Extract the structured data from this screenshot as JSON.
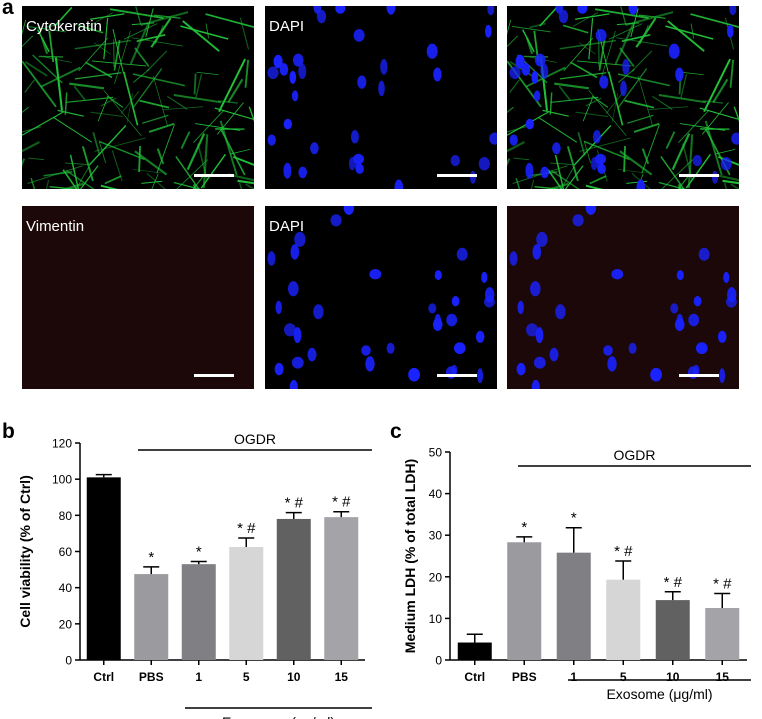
{
  "panels": {
    "a": "a",
    "b": "b",
    "c": "c"
  },
  "micrographs": [
    {
      "label": "Cytokeratin",
      "channel": "green"
    },
    {
      "label": "DAPI",
      "channel": "blue"
    },
    {
      "label": "",
      "channel": "merge-green-blue"
    },
    {
      "label": "Vimentin",
      "channel": "dark-red"
    },
    {
      "label": "DAPI",
      "channel": "blue"
    },
    {
      "label": "",
      "channel": "merge-red-blue"
    }
  ],
  "colors": {
    "green_stain": "#22c43a",
    "blue_nuclei": "#1a22ff",
    "dark_red_bg": "#1c0808",
    "bar_ctrl": "#000000",
    "bar_pbs": "#9a9a9f",
    "bar_1": "#7f7f84",
    "bar_5": "#d6d6d6",
    "bar_10": "#616161",
    "bar_15": "#a3a3a8"
  },
  "chart_data": [
    {
      "type": "bar",
      "categories": [
        "Ctrl",
        "PBS",
        "1",
        "5",
        "10",
        "15"
      ],
      "values": [
        101,
        47.5,
        53,
        62.5,
        78,
        79
      ],
      "errors": [
        1.5,
        4,
        1.5,
        5,
        3.5,
        3
      ],
      "annotations": [
        "",
        "*",
        "*",
        "*#",
        "*#",
        "*#"
      ],
      "ylabel": "Cell viability (% of Ctrl)",
      "xlabel": "Exosomes (μg/ml)",
      "ylim": [
        0,
        120
      ],
      "yticks": [
        0,
        20,
        40,
        60,
        80,
        100,
        120
      ],
      "group_label": "OGDR"
    },
    {
      "type": "bar",
      "categories": [
        "Ctrl",
        "PBS",
        "1",
        "5",
        "10",
        "15"
      ],
      "values": [
        4.2,
        28.3,
        25.8,
        19.3,
        14.4,
        12.5
      ],
      "errors": [
        2,
        1.3,
        6,
        4.5,
        2,
        3.5
      ],
      "annotations": [
        "",
        "*",
        "*",
        "*#",
        "*#",
        "*#"
      ],
      "ylabel": "Medium LDH (% of total LDH)",
      "xlabel": "Exosome (μg/ml)",
      "ylim": [
        0,
        50
      ],
      "yticks": [
        0,
        10,
        20,
        30,
        40,
        50
      ],
      "group_label": "OGDR"
    }
  ]
}
